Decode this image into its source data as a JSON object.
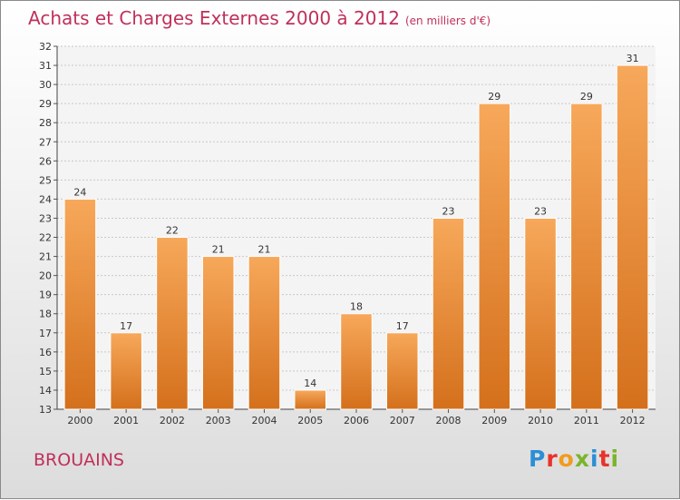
{
  "title": "Achats et Charges Externes 2000 à 2012",
  "subtitle": "(en milliers d'€)",
  "commune": "BROUAINS",
  "logo": {
    "letters": [
      "P",
      "r",
      "o",
      "x",
      "i",
      "t",
      "i"
    ],
    "colors": [
      "#2c8fd6",
      "#e8332a",
      "#f29b1d",
      "#7bb52b",
      "#2c8fd6",
      "#e8332a",
      "#7bb52b"
    ]
  },
  "colors": {
    "bar_top": "#f7a85a",
    "bar_bottom": "#d4701c",
    "text_accent": "#c0305a"
  },
  "chart_data": {
    "type": "bar",
    "categories": [
      "2000",
      "2001",
      "2002",
      "2003",
      "2004",
      "2005",
      "2006",
      "2007",
      "2008",
      "2009",
      "2010",
      "2011",
      "2012"
    ],
    "values": [
      24,
      17,
      22,
      21,
      21,
      14,
      18,
      17,
      23,
      29,
      23,
      29,
      31
    ],
    "ylim": [
      13,
      32
    ],
    "yticks": [
      13,
      14,
      15,
      16,
      17,
      18,
      19,
      20,
      21,
      22,
      23,
      24,
      25,
      26,
      27,
      28,
      29,
      30,
      31,
      32
    ],
    "grid": true
  }
}
